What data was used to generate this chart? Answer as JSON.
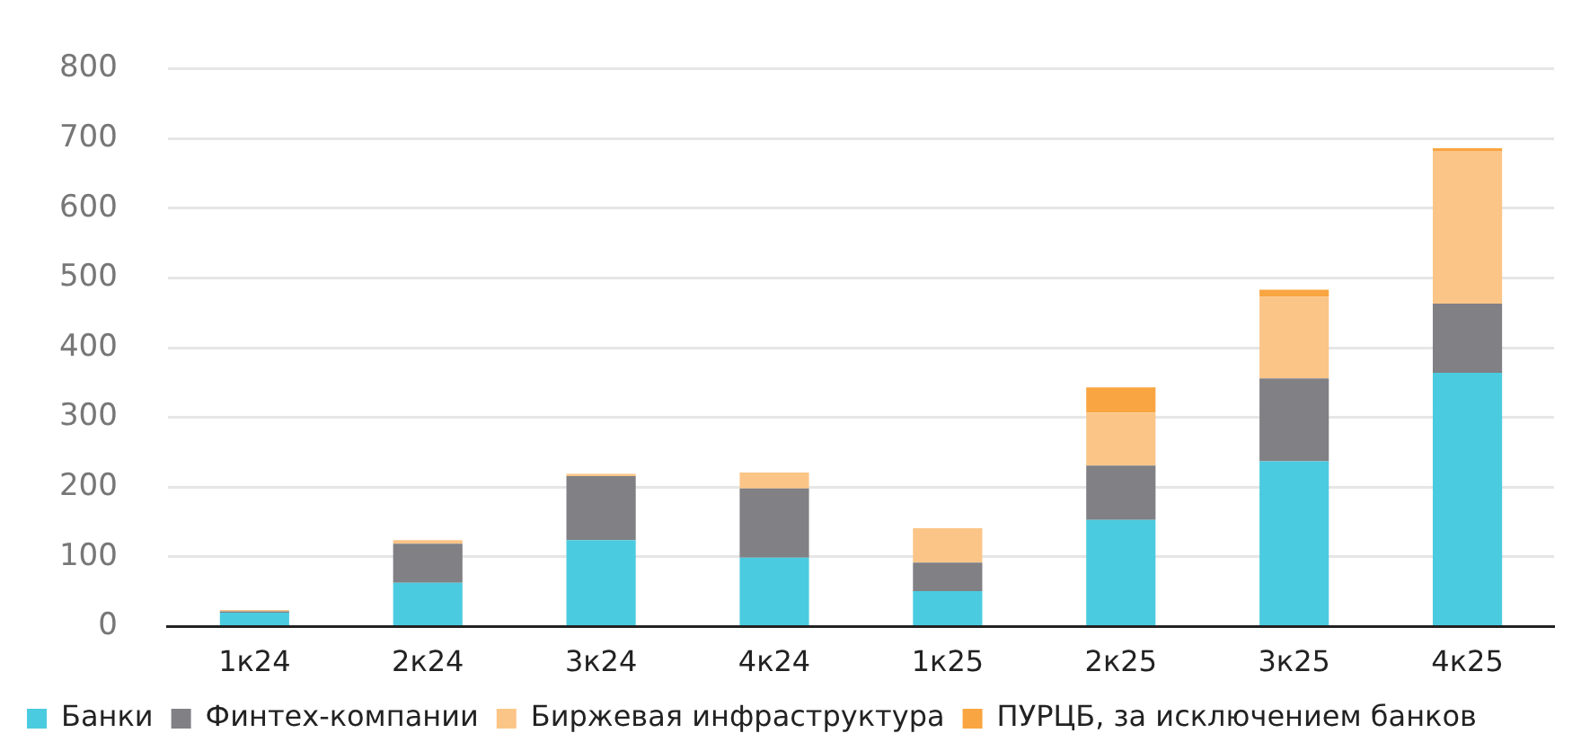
{
  "chart_data": {
    "type": "bar",
    "stacked": true,
    "categories": [
      "1к24",
      "2к24",
      "3к24",
      "4к24",
      "1к25",
      "2к25",
      "3к25",
      "4к25"
    ],
    "series": [
      {
        "name": "Банки",
        "color": "#4bcbdf",
        "values": [
          20,
          63,
          124,
          99,
          51,
          153,
          237,
          364
        ]
      },
      {
        "name": "Финтех-компании",
        "color": "#808085",
        "values": [
          2,
          56,
          92,
          99,
          41,
          78,
          119,
          99
        ]
      },
      {
        "name": "Биржевая инфраструктура",
        "color": "#fbc587",
        "values": [
          2,
          5,
          3,
          23,
          49,
          76,
          117,
          219
        ]
      },
      {
        "name": "ПУРЦБ, за исключением банков",
        "color": "#f9a541",
        "values": [
          0,
          0,
          0,
          0,
          0,
          36,
          10,
          4
        ]
      }
    ],
    "ylim": [
      0,
      800
    ],
    "yticks": [
      0,
      100,
      200,
      300,
      400,
      500,
      600,
      700,
      800
    ],
    "grid": "y",
    "legend": "bottom left"
  }
}
